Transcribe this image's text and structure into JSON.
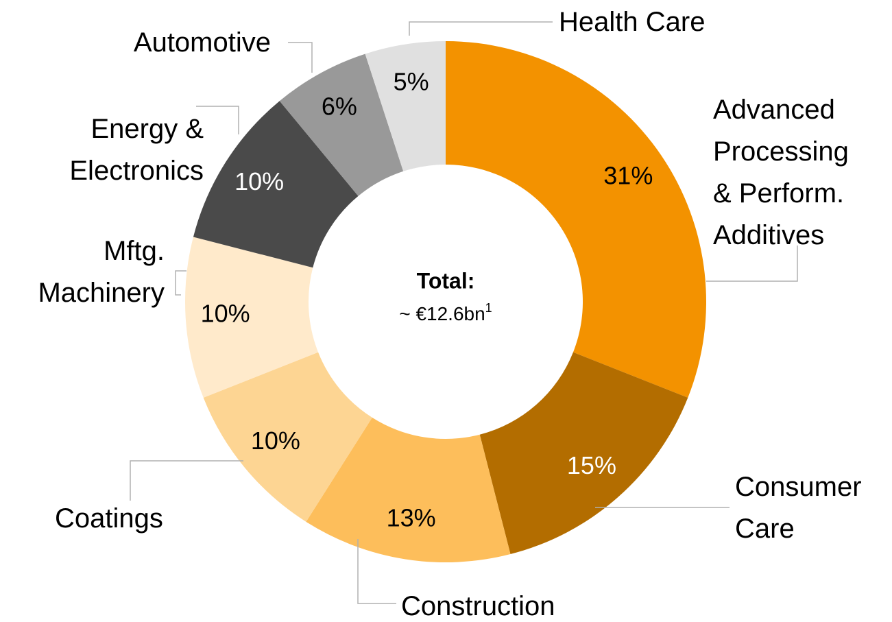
{
  "chart_data": {
    "type": "donut",
    "center_title": "Total:",
    "center_value": "~ €12.6bn",
    "center_footnote": "1",
    "categories": [
      "Advanced\nProcessing\n& Perform.\nAdditives",
      "Consumer\nCare",
      "Construction",
      "Coatings",
      "Mftg.\nMachinery",
      "Energy &\nElectronics",
      "Automotive",
      "Health Care"
    ],
    "values": [
      31,
      15,
      13,
      10,
      10,
      10,
      6,
      5
    ],
    "value_labels": [
      "31%",
      "15%",
      "13%",
      "10%",
      "10%",
      "10%",
      "6%",
      "5%"
    ],
    "colors": [
      "#f39200",
      "#b36d00",
      "#fdbe5b",
      "#fdd593",
      "#ffeacb",
      "#4a4a4a",
      "#999999",
      "#e0e0e0"
    ],
    "label_colors": [
      "#000000",
      "#ffffff",
      "#000000",
      "#000000",
      "#000000",
      "#ffffff",
      "#000000",
      "#000000"
    ]
  }
}
